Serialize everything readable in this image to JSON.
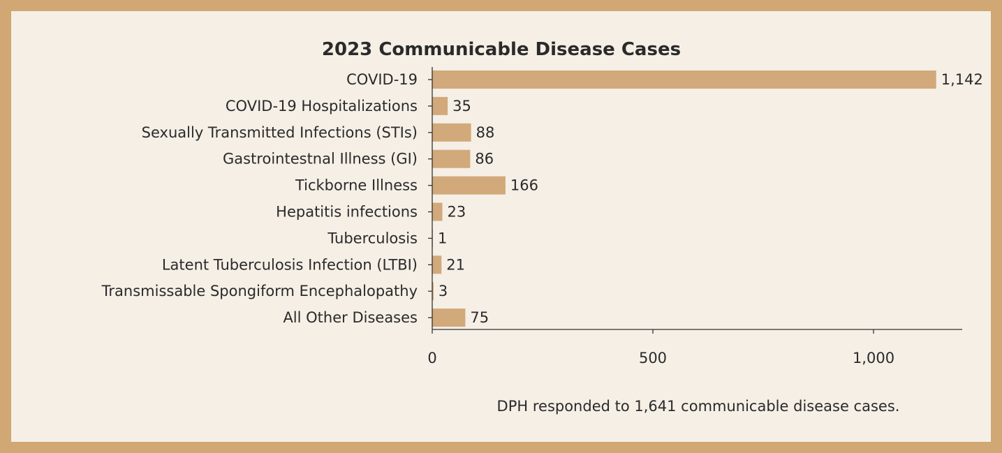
{
  "chart_data": {
    "type": "bar",
    "orientation": "horizontal",
    "title": "2023 Communicable Disease Cases",
    "categories": [
      "COVID-19",
      "COVID-19 Hospitalizations",
      "Sexually Transmitted Infections (STIs)",
      "Gastrointestnal Illness (GI)",
      "Tickborne Illness",
      "Hepatitis infections",
      "Tuberculosis",
      "Latent Tuberculosis Infection (LTBI)",
      "Transmissable Spongiform Encephalopathy",
      "All Other Diseases"
    ],
    "values": [
      1142,
      35,
      88,
      86,
      166,
      23,
      1,
      21,
      3,
      75
    ],
    "value_labels": [
      "1,142",
      "35",
      "88",
      "86",
      "166",
      "23",
      "1",
      "21",
      "3",
      "75"
    ],
    "xlim": [
      0,
      1200
    ],
    "xticks": [
      0,
      500,
      1000
    ],
    "xtick_labels": [
      "0",
      "500",
      "1,000"
    ],
    "xlabel": "",
    "ylabel": "",
    "grid": false,
    "bar_color": "#d2a97a",
    "frame_color": "#d1a774",
    "background_color": "#f5efe6"
  },
  "note": "DPH responded to 1,641 communicable disease cases."
}
